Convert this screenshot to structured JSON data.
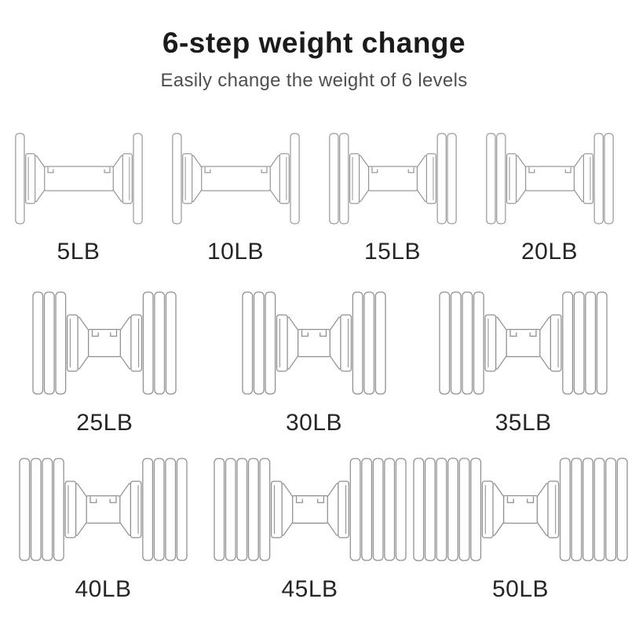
{
  "header": {
    "title": "6-step weight change",
    "subtitle": "Easily change the weight of 6 levels"
  },
  "unit": "LB",
  "colors": {
    "background": "#ffffff",
    "title_text": "#1b1b1b",
    "subtitle_text": "#4f4f4f",
    "label_text": "#262626",
    "line_art": "#8f8f8f"
  },
  "rows": [
    [
      {
        "label": "5LB",
        "weight_lb": 5,
        "plates_per_side": 1
      },
      {
        "label": "10LB",
        "weight_lb": 10,
        "plates_per_side": 1
      },
      {
        "label": "15LB",
        "weight_lb": 15,
        "plates_per_side": 2
      },
      {
        "label": "20LB",
        "weight_lb": 20,
        "plates_per_side": 2
      }
    ],
    [
      {
        "label": "25LB",
        "weight_lb": 25,
        "plates_per_side": 3
      },
      {
        "label": "30LB",
        "weight_lb": 30,
        "plates_per_side": 3
      },
      {
        "label": "35LB",
        "weight_lb": 35,
        "plates_per_side": 4
      }
    ],
    [
      {
        "label": "40LB",
        "weight_lb": 40,
        "plates_per_side": 4
      },
      {
        "label": "45LB",
        "weight_lb": 45,
        "plates_per_side": 5
      },
      {
        "label": "50LB",
        "weight_lb": 50,
        "plates_per_side": 6
      }
    ]
  ]
}
